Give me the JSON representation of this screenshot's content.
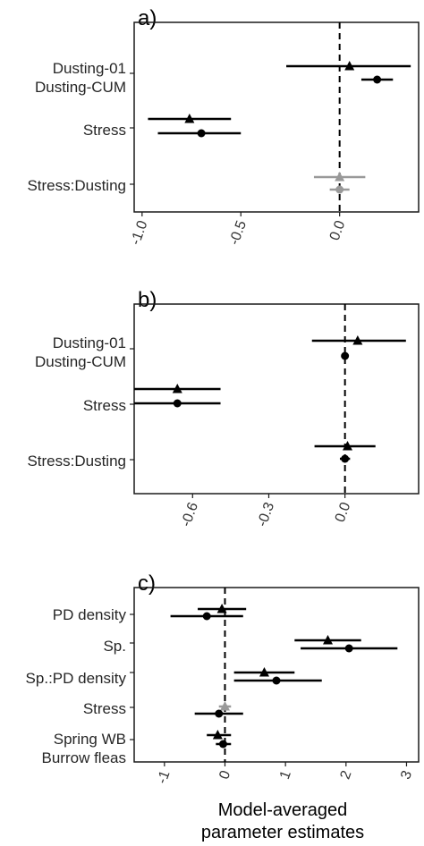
{
  "figure": {
    "x_axis_title": "Model-averaged parameter estimates"
  },
  "colors": {
    "solid": "#000000",
    "faded": "#999999",
    "frame": "#1a1a1a",
    "zero_line": "#000000"
  },
  "chart_data": [
    {
      "type": "forest",
      "panel_label": "a)",
      "categories": [
        "Dusting-01",
        "Dusting-CUM",
        "Stress",
        "Stress:Dusting"
      ],
      "xlim": [
        -1.04,
        0.4
      ],
      "xticks": [
        -1.0,
        -0.5,
        0.0
      ],
      "xtick_labels": [
        "-1.0",
        "-0.5",
        "0.0"
      ],
      "xlabel": "",
      "grid": false,
      "series": [
        {
          "marker": "triangle",
          "points": [
            {
              "term": "Dusting-01",
              "estimate": 0.05,
              "low": -0.27,
              "high": 0.36,
              "faded": false
            },
            {
              "term": "Stress",
              "estimate": -0.76,
              "low": -0.97,
              "high": -0.55,
              "faded": false
            },
            {
              "term": "Stress:Dusting",
              "estimate": 0.0,
              "low": -0.13,
              "high": 0.13,
              "faded": true
            }
          ]
        },
        {
          "marker": "circle",
          "points": [
            {
              "term": "Dusting-CUM",
              "estimate": 0.19,
              "low": 0.11,
              "high": 0.27,
              "faded": false
            },
            {
              "term": "Stress",
              "estimate": -0.7,
              "low": -0.92,
              "high": -0.5,
              "faded": false
            },
            {
              "term": "Stress:Dusting",
              "estimate": 0.0,
              "low": -0.05,
              "high": 0.05,
              "faded": true
            }
          ]
        }
      ]
    },
    {
      "type": "forest",
      "panel_label": "b)",
      "categories": [
        "Dusting-01",
        "Dusting-CUM",
        "Stress",
        "Stress:Dusting"
      ],
      "xlim": [
        -0.83,
        0.29
      ],
      "xticks": [
        -0.6,
        -0.3,
        0.0
      ],
      "xtick_labels": [
        "-0.6",
        "-0.3",
        "0.0"
      ],
      "xlabel": "",
      "grid": false,
      "series": [
        {
          "marker": "triangle",
          "points": [
            {
              "term": "Dusting-01",
              "estimate": 0.05,
              "low": -0.13,
              "high": 0.24,
              "faded": false
            },
            {
              "term": "Stress",
              "estimate": -0.66,
              "low": -0.83,
              "high": -0.49,
              "faded": false
            },
            {
              "term": "Stress:Dusting",
              "estimate": 0.01,
              "low": -0.12,
              "high": 0.12,
              "faded": false
            }
          ]
        },
        {
          "marker": "circle",
          "points": [
            {
              "term": "Dusting-CUM",
              "estimate": 0.0,
              "low": -0.01,
              "high": 0.01,
              "faded": false
            },
            {
              "term": "Stress",
              "estimate": -0.66,
              "low": -0.83,
              "high": -0.49,
              "faded": false
            },
            {
              "term": "Stress:Dusting",
              "estimate": 0.0,
              "low": -0.02,
              "high": 0.02,
              "faded": false
            }
          ]
        }
      ]
    },
    {
      "type": "forest",
      "panel_label": "c)",
      "categories": [
        "PD density",
        "Sp.",
        "Sp.:PD density",
        "Stress",
        "Spring WB",
        "Burrow fleas"
      ],
      "xlim": [
        -1.5,
        3.2
      ],
      "xticks": [
        -1,
        0,
        1,
        2,
        3
      ],
      "xtick_labels": [
        "-1",
        "0",
        "1",
        "2",
        "3"
      ],
      "xlabel": "Model-averaged parameter estimates",
      "grid": false,
      "series": [
        {
          "marker": "triangle",
          "points": [
            {
              "term": "PD density",
              "estimate": -0.05,
              "low": -0.45,
              "high": 0.35,
              "faded": false
            },
            {
              "term": "Sp.",
              "estimate": 1.7,
              "low": 1.15,
              "high": 2.25,
              "faded": false
            },
            {
              "term": "Sp.:PD density",
              "estimate": 0.65,
              "low": 0.15,
              "high": 1.15,
              "faded": false
            },
            {
              "term": "Stress",
              "estimate": 0.0,
              "low": -0.1,
              "high": 0.1,
              "faded": true
            },
            {
              "term": "Spring WB",
              "estimate": -0.12,
              "low": -0.3,
              "high": 0.1,
              "faded": false
            }
          ]
        },
        {
          "marker": "circle",
          "points": [
            {
              "term": "PD density",
              "estimate": -0.3,
              "low": -0.9,
              "high": 0.3,
              "faded": false
            },
            {
              "term": "Sp.",
              "estimate": 2.05,
              "low": 1.25,
              "high": 2.85,
              "faded": false
            },
            {
              "term": "Sp.:PD density",
              "estimate": 0.85,
              "low": 0.15,
              "high": 1.6,
              "faded": false
            },
            {
              "term": "Stress",
              "estimate": -0.1,
              "low": -0.5,
              "high": 0.3,
              "faded": false
            },
            {
              "term": "Burrow fleas",
              "estimate": -0.03,
              "low": -0.15,
              "high": 0.1,
              "faded": false
            }
          ]
        }
      ]
    }
  ]
}
